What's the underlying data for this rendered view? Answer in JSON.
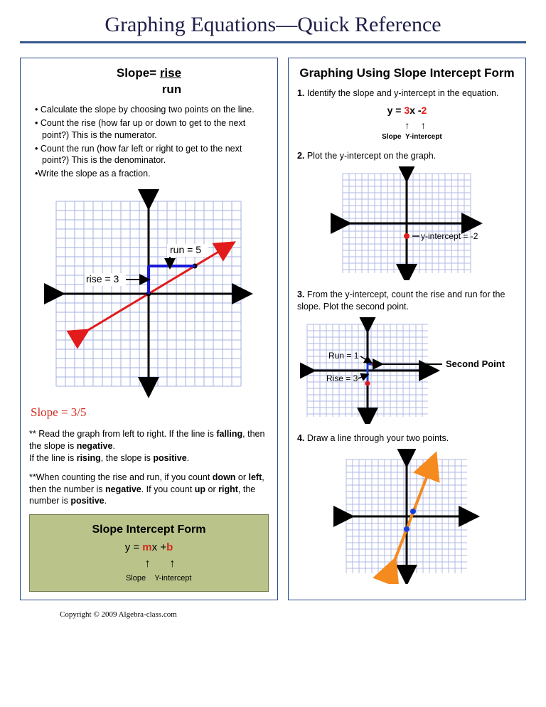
{
  "page": {
    "title": "Graphing Equations—Quick Reference",
    "copyright": "Copyright © 2009 Algebra-class.com"
  },
  "left_panel": {
    "heading_prefix": "Slope= ",
    "heading_num": "rise",
    "heading_den": "run",
    "bullets": [
      "• Calculate the slope by choosing two points on the line.",
      "• Count the rise (how far up or down to get to the next point?)  This is the numerator.",
      "• Count the run (how far left or right to get to the next point?)  This is the denominator.",
      "•Write the slope as a fraction."
    ],
    "graph1": {
      "grid_color": "#a6b0e0",
      "axis_color": "#000000",
      "line_color": "#e21b1b",
      "rise_run_color": "#1a1ad6",
      "background": "#ffffff",
      "xlim": [
        -10,
        10
      ],
      "ylim": [
        -10,
        10
      ],
      "points": [
        [
          0,
          0
        ],
        [
          5,
          3
        ]
      ],
      "rise_label": "rise = 3",
      "run_label": "run = 5"
    },
    "slope_result": "Slope = 3/5",
    "note1_a": "**   Read the graph from left to right.  If the line is ",
    "note1_b": "falling",
    "note1_c": ", then the slope is ",
    "note1_d": "negative",
    "note1_e": ".",
    "note1_f": "If the line is ",
    "note1_g": "rising",
    "note1_h": ", the slope is ",
    "note1_i": "positive",
    "note1_j": ".",
    "note2_a": "**When counting the rise and run, if you count ",
    "note2_b": "down",
    "note2_c": " or ",
    "note2_d": "left",
    "note2_e": ", then the number is ",
    "note2_f": "negative",
    "note2_g": ".  If you count ",
    "note2_h": "up",
    "note2_i": " or ",
    "note2_j": "right",
    "note2_k": ", the number is ",
    "note2_l": "positive",
    "note2_m": ".",
    "green_box": {
      "title": "Slope Intercept Form",
      "eq_pre": "y = ",
      "eq_m": "m",
      "eq_mid": "x +",
      "eq_b": "b",
      "label_m": "Slope",
      "label_b": "Y-intercept"
    }
  },
  "right_panel": {
    "heading": "Graphing Using Slope Intercept Form",
    "steps": {
      "s1": "Identify the slope and y-intercept in the equation.",
      "s2": "Plot the y-intercept on the graph.",
      "s3": "From the y-intercept, count the rise and run for the slope.  Plot the second point.",
      "s4": "Draw a line through your two points."
    },
    "equation": {
      "text_pre": "y = ",
      "slope": "3",
      "mid": "x -",
      "intercept": "2",
      "label_m": "Slope",
      "label_b": "Y-intercept",
      "slope_color": "#e31818",
      "intercept_color": "#e31818"
    },
    "graph2": {
      "grid_color": "#b0b8e4",
      "axis_color": "#000000",
      "point_color": "#e21b1b",
      "y_intercept": -2,
      "label": "y-intercept = -2"
    },
    "graph3": {
      "grid_color": "#b0b8e4",
      "axis_color": "#000000",
      "point_color": "#e21b1b",
      "overlay_color": "#1a3fd6",
      "p1": [
        0,
        -2
      ],
      "p2": [
        1,
        1
      ],
      "run_label": "Run = 1",
      "rise_label": "Rise = 3",
      "second_pt_label": "Second Point"
    },
    "graph4": {
      "grid_color": "#b0b8e4",
      "axis_color": "#000000",
      "line_color": "#f58a1f",
      "point_color": "#1a3fd6",
      "p1": [
        0,
        -2
      ],
      "p2": [
        1,
        1
      ]
    }
  }
}
